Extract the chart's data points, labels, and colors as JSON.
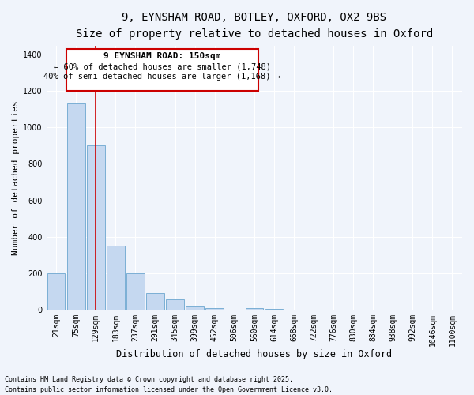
{
  "title_line1": "9, EYNSHAM ROAD, BOTLEY, OXFORD, OX2 9BS",
  "title_line2": "Size of property relative to detached houses in Oxford",
  "xlabel": "Distribution of detached houses by size in Oxford",
  "ylabel": "Number of detached properties",
  "bar_color": "#c5d8f0",
  "bar_edge_color": "#7bafd4",
  "background_color": "#f0f4fb",
  "grid_color": "#ffffff",
  "categories": [
    "21sqm",
    "75sqm",
    "129sqm",
    "183sqm",
    "237sqm",
    "291sqm",
    "345sqm",
    "399sqm",
    "452sqm",
    "506sqm",
    "560sqm",
    "614sqm",
    "668sqm",
    "722sqm",
    "776sqm",
    "830sqm",
    "884sqm",
    "938sqm",
    "992sqm",
    "1046sqm",
    "1100sqm"
  ],
  "values": [
    200,
    1130,
    900,
    350,
    200,
    90,
    55,
    20,
    10,
    0,
    10,
    5,
    0,
    0,
    0,
    0,
    0,
    0,
    0,
    0,
    0
  ],
  "redline_x": 2,
  "ylim": [
    0,
    1450
  ],
  "yticks": [
    0,
    200,
    400,
    600,
    800,
    1000,
    1200,
    1400
  ],
  "annotation_title": "9 EYNSHAM ROAD: 150sqm",
  "annotation_line2": "← 60% of detached houses are smaller (1,748)",
  "annotation_line3": "40% of semi-detached houses are larger (1,168) →",
  "annotation_box_color": "#ffffff",
  "annotation_box_edge": "#cc0000",
  "redline_color": "#cc0000",
  "footer_line1": "Contains HM Land Registry data © Crown copyright and database right 2025.",
  "footer_line2": "Contains public sector information licensed under the Open Government Licence v3.0.",
  "title_fontsize": 10,
  "subtitle_fontsize": 9,
  "tick_fontsize": 7,
  "xlabel_fontsize": 8.5,
  "ylabel_fontsize": 8
}
